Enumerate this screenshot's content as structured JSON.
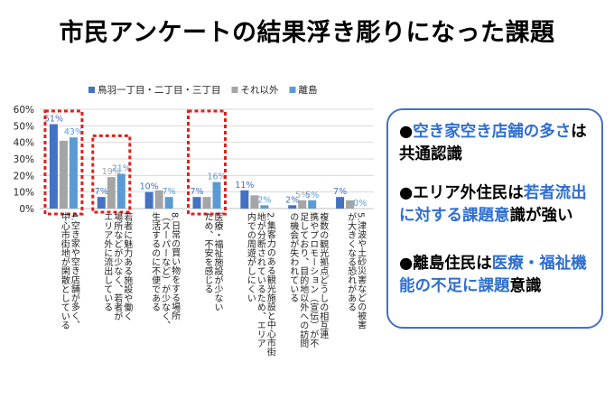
{
  "title": "市民アンケートの結果浮き彫りになった課題",
  "chart_data": {
    "type": "bar",
    "series": [
      {
        "name": "鳥羽一丁目・二丁目・三丁目",
        "color": "#4472c4",
        "values": [
          51,
          7,
          10,
          7,
          11,
          2,
          7
        ]
      },
      {
        "name": "それ以外",
        "color": "#a5a5a5",
        "values": [
          41,
          19,
          11,
          7,
          8,
          5,
          5
        ]
      },
      {
        "name": "離島",
        "color": "#5b9bd5",
        "values": [
          43,
          21,
          7,
          16,
          2,
          5,
          0
        ]
      }
    ],
    "data_labels": [
      [
        "51%",
        "7%",
        "10%",
        "7%",
        "11%",
        "2%",
        "7%"
      ],
      [
        "",
        "19%",
        "",
        "",
        "",
        "5%",
        ""
      ],
      [
        "43%",
        "21%",
        "7%",
        "16%",
        "2%",
        "5%",
        "0%"
      ]
    ],
    "categories": [
      "4.空き家や空き店舗が多く、\n中心市街地が閑散としている",
      "若者に魅力ある施設や働く\n場所などが少なく、若者が\nエリア外に流出している",
      "8.日常の買い物をする場所\n（スーパーなど）が少なく、\n生活するのに不便である",
      "医療・福祉施設が少ない\nため、不安を感じる",
      "2.集客力のある観光施設と中心市街\n地が分断されているため、エリア\n内での周遊がしにくい",
      "複数の観光拠点どうしの相互連\n携やプロモーション（宣伝）が不\n足しており、目的地以外への訪問\nの機会が失われている",
      "5.津波や土砂災害などの被害\nが大きくなる恐れがある"
    ],
    "ytick_labels": [
      "0%",
      "10%",
      "20%",
      "30%",
      "40%",
      "50%",
      "60%"
    ],
    "ylim": [
      0,
      60
    ],
    "grid": true,
    "legend_position": "top",
    "highlight_color": "#e0201d",
    "highlighted_categories": [
      0,
      1,
      3
    ]
  },
  "summary": {
    "p1_a": "●",
    "p1_b": "空き家空き店舗の多さ",
    "p1_c": "は共通認識",
    "p2_a": "●エリア外住民は",
    "p2_b": "若者流出に対する課題意",
    "p2_c": "識が強い",
    "p3_a": "●離島住民は",
    "p3_b": "医療・福祉機能の不足に課題",
    "p3_c": "意識",
    "accent_color": "#2f6fd0"
  }
}
